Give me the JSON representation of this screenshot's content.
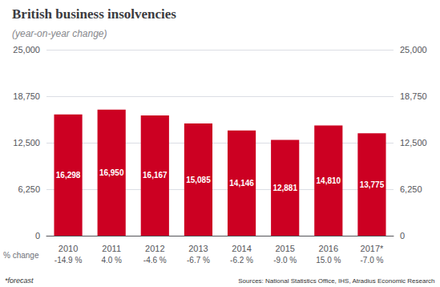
{
  "chart_data": {
    "type": "bar",
    "title": "British business insolvencies",
    "subtitle": "(year-on-year change)",
    "categories": [
      "2010",
      "2011",
      "2012",
      "2013",
      "2014",
      "2015",
      "2016",
      "2017*"
    ],
    "values": [
      16298,
      16950,
      16167,
      15085,
      14146,
      12881,
      14810,
      13775
    ],
    "value_labels": [
      "16,298",
      "16,950",
      "16,167",
      "15,085",
      "14,146",
      "12,881",
      "14,810",
      "13,775"
    ],
    "data_labels": true,
    "color": "#cc0022",
    "ylim": [
      0,
      25000
    ],
    "yticks": [
      0,
      {
        "value": 6250,
        "label": "6,250"
      },
      {
        "value": 12500,
        "label": "12,500"
      },
      {
        "value": 18750,
        "label": "18,750"
      },
      {
        "value": 25000,
        "label": "25,000"
      }
    ],
    "y2lim": [
      0,
      25000
    ],
    "y2ticks": [
      0,
      {
        "value": 6250,
        "label": "6,250"
      },
      {
        "value": 12500,
        "label": "12,500"
      },
      {
        "value": 18750,
        "label": "18,750"
      },
      {
        "value": 25000,
        "label": "25,000"
      }
    ],
    "grid": true,
    "change_row": {
      "label": "% change",
      "labels": [
        "-14.9 %",
        "4.0 %",
        "-4.6 %",
        "-6.7 %",
        "-6.2 %",
        "-9.0 %",
        "15.0 %",
        "-7.0 %"
      ]
    },
    "annotations": [
      "*forecast",
      "Sources: National Statistics Office, IHS, Atradius Economic Research"
    ]
  }
}
